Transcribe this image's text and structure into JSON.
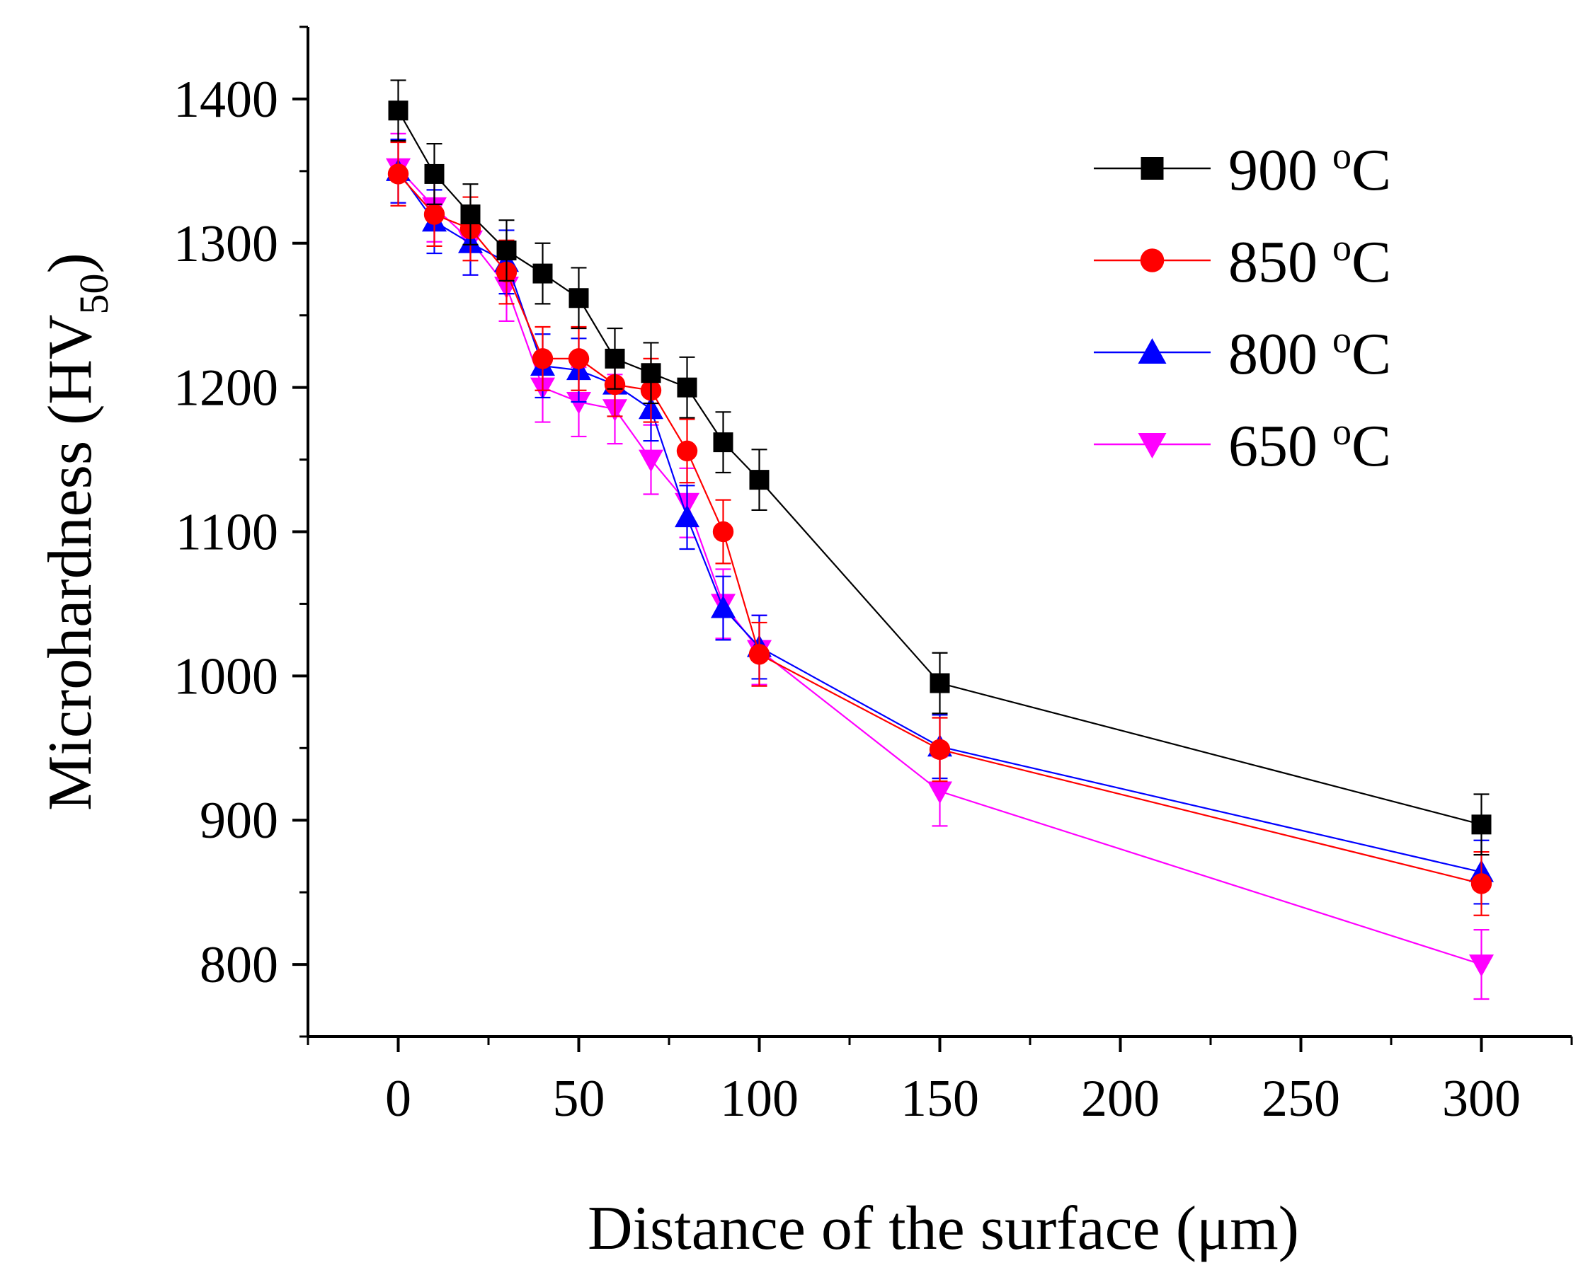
{
  "chart_data": {
    "type": "line",
    "title": "",
    "xlabel": "Distance of the surface (μm)",
    "ylabel": "Microhardness (HV",
    "ylabel_subscript": "50",
    "ylabel_close": ")",
    "xlim": [
      -25,
      325
    ],
    "ylim": [
      750,
      1450
    ],
    "x_ticks": [
      0,
      50,
      100,
      150,
      200,
      250,
      300
    ],
    "x_tick_labels": [
      "0",
      "50",
      "100",
      "150",
      "200",
      "250",
      "300"
    ],
    "y_ticks": [
      800,
      900,
      1000,
      1100,
      1200,
      1300,
      1400
    ],
    "y_tick_labels": [
      "800",
      "900",
      "1000",
      "1100",
      "1200",
      "1300",
      "1400"
    ],
    "grid": false,
    "legend_position": "top-right",
    "x": [
      0,
      10,
      20,
      30,
      40,
      50,
      60,
      70,
      80,
      90,
      100,
      150,
      300
    ],
    "series": [
      {
        "name": "900",
        "unit_sup": "o",
        "unit": "C",
        "color": "#000000",
        "marker": "square",
        "values": [
          1392,
          1348,
          1320,
          1295,
          1279,
          1262,
          1220,
          1210,
          1200,
          1162,
          1136,
          995,
          897
        ],
        "errors": [
          21,
          21,
          21,
          21,
          21,
          21,
          21,
          21,
          21,
          21,
          21,
          21,
          21
        ]
      },
      {
        "name": "850",
        "unit_sup": "o",
        "unit": "C",
        "color": "#ff0000",
        "marker": "circle",
        "values": [
          1348,
          1320,
          1310,
          1280,
          1220,
          1220,
          1202,
          1198,
          1156,
          1100,
          1015,
          949,
          856
        ],
        "errors": [
          22,
          22,
          22,
          22,
          22,
          22,
          22,
          22,
          22,
          22,
          22,
          22,
          22
        ]
      },
      {
        "name": "800",
        "unit_sup": "o",
        "unit": "C",
        "color": "#0000ff",
        "marker": "triangle-up",
        "values": [
          1350,
          1315,
          1300,
          1287,
          1215,
          1212,
          1202,
          1185,
          1110,
          1047,
          1020,
          951,
          864
        ],
        "errors": [
          22,
          22,
          22,
          22,
          22,
          22,
          22,
          22,
          22,
          22,
          22,
          22,
          22
        ]
      },
      {
        "name": "650",
        "unit_sup": "o",
        "unit": "C",
        "color": "#ff00ff",
        "marker": "triangle-down",
        "values": [
          1352,
          1325,
          1302,
          1270,
          1200,
          1190,
          1185,
          1150,
          1120,
          1050,
          1018,
          920,
          800
        ],
        "errors": [
          24,
          24,
          24,
          24,
          24,
          24,
          24,
          24,
          24,
          24,
          24,
          24,
          24
        ]
      }
    ]
  }
}
